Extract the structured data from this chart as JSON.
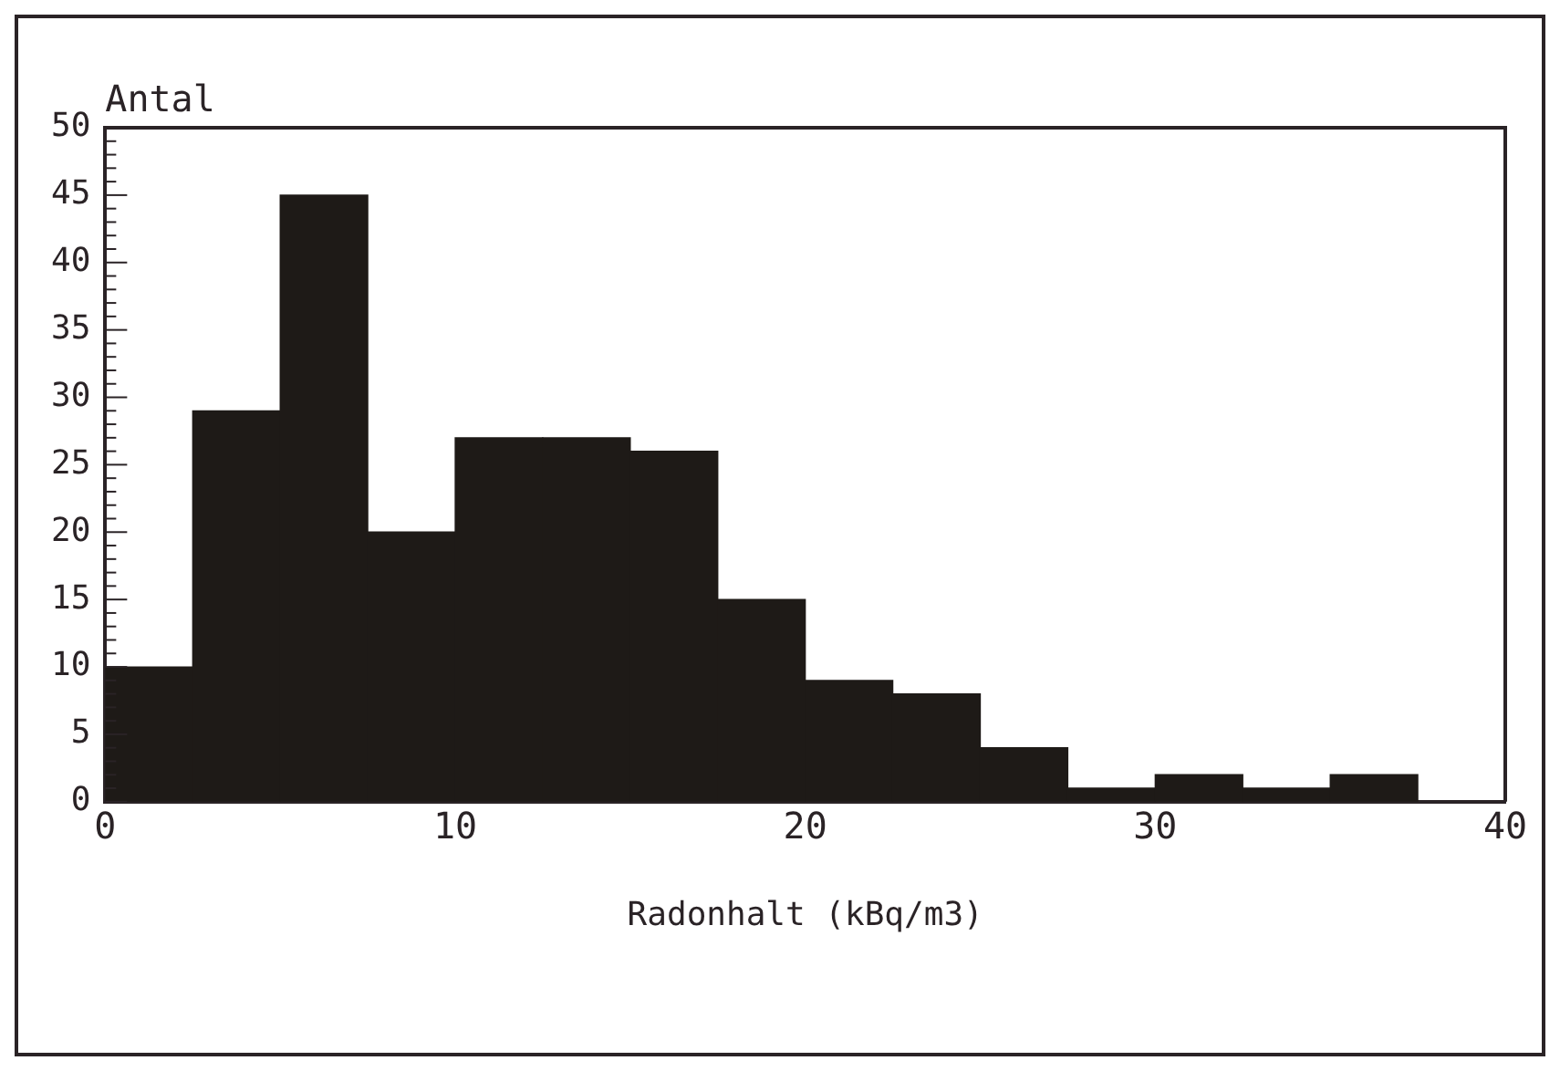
{
  "chart_data": {
    "type": "histogram",
    "xlabel": "Radonhalt (kBq/m3)",
    "ylabel": "Antal",
    "bins": [
      0,
      2.5,
      5,
      7.5,
      10,
      12.5,
      15,
      17.5,
      20,
      22.5,
      25,
      27.5,
      30,
      32.5,
      35,
      37.5
    ],
    "values": [
      10,
      29,
      45,
      20,
      27,
      27,
      26,
      15,
      9,
      8,
      4,
      1,
      2,
      1,
      2
    ],
    "color": "#1e1a17",
    "xlim": [
      0,
      40
    ],
    "xticks": [
      0,
      10,
      20,
      30,
      40
    ],
    "ylim": [
      0,
      50
    ],
    "yticks": [
      0,
      5,
      10,
      15,
      20,
      25,
      30,
      35,
      40,
      45,
      50
    ],
    "grid": false
  }
}
